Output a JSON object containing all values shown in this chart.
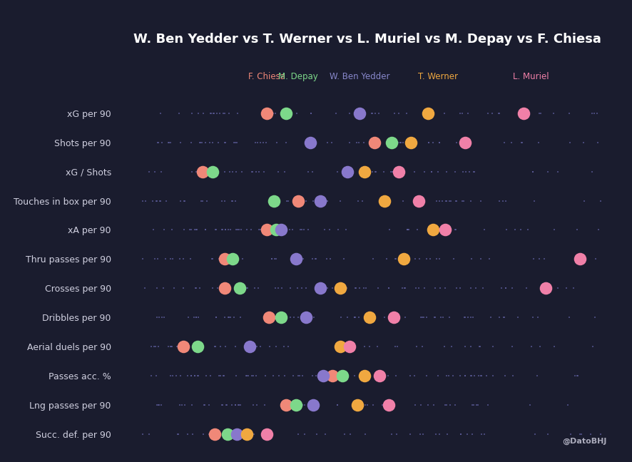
{
  "title": "W. Ben Yedder vs T. Werner vs L. Muriel vs M. Depay vs F. Chiesa",
  "background_color": "#1a1c2e",
  "text_color": "#d0d0e0",
  "watermark": "@DatoBHJ",
  "players": [
    "F. Chiesa",
    "M. Depay",
    "W. Ben Yedder",
    "T. Werner",
    "L. Muriel"
  ],
  "player_colors": [
    "#f08878",
    "#7dd88a",
    "#8878cc",
    "#f0a840",
    "#f080a8"
  ],
  "player_label_colors": [
    "#f08878",
    "#7dd88a",
    "#8888cc",
    "#f0a840",
    "#f080a8"
  ],
  "metrics": [
    "xG per 90",
    "Shots per 90",
    "xG / Shots",
    "Touches in box per 90",
    "xA per 90",
    "Thru passes per 90",
    "Crosses per 90",
    "Dribbles per 90",
    "Aerial duels per 90",
    "Passes acc. %",
    "Lng passes per 90",
    "Succ. def. per 90"
  ],
  "player_positions": {
    "xG per 90": {
      "F. Chiesa": 0.305,
      "M. Depay": 0.345,
      "W. Ben Yedder": 0.495,
      "T. Werner": 0.635,
      "L. Muriel": 0.83
    },
    "Shots per 90": {
      "F. Chiesa": 0.525,
      "M. Depay": 0.56,
      "W. Ben Yedder": 0.395,
      "T. Werner": 0.6,
      "L. Muriel": 0.71
    },
    "xG / Shots": {
      "F. Chiesa": 0.175,
      "M. Depay": 0.195,
      "W. Ben Yedder": 0.47,
      "T. Werner": 0.505,
      "L. Muriel": 0.575
    },
    "Touches in box per 90": {
      "F. Chiesa": 0.37,
      "M. Depay": 0.32,
      "W. Ben Yedder": 0.415,
      "T. Werner": 0.545,
      "L. Muriel": 0.615
    },
    "xA per 90": {
      "F. Chiesa": 0.305,
      "M. Depay": 0.325,
      "W. Ben Yedder": 0.335,
      "T. Werner": 0.645,
      "L. Muriel": 0.67
    },
    "Thru passes per 90": {
      "F. Chiesa": 0.22,
      "M. Depay": 0.235,
      "W. Ben Yedder": 0.365,
      "T. Werner": 0.585,
      "L. Muriel": 0.945
    },
    "Crosses per 90": {
      "F. Chiesa": 0.22,
      "M. Depay": 0.25,
      "W. Ben Yedder": 0.415,
      "T. Werner": 0.455,
      "L. Muriel": 0.875
    },
    "Dribbles per 90": {
      "F. Chiesa": 0.31,
      "M. Depay": 0.335,
      "W. Ben Yedder": 0.385,
      "T. Werner": 0.515,
      "L. Muriel": 0.565
    },
    "Aerial duels per 90": {
      "F. Chiesa": 0.135,
      "M. Depay": 0.165,
      "W. Ben Yedder": 0.27,
      "T. Werner": 0.455,
      "L. Muriel": 0.475
    },
    "Passes acc. %": {
      "F. Chiesa": 0.44,
      "M. Depay": 0.46,
      "W. Ben Yedder": 0.42,
      "T. Werner": 0.505,
      "L. Muriel": 0.535
    },
    "Lng passes per 90": {
      "F. Chiesa": 0.345,
      "M. Depay": 0.365,
      "W. Ben Yedder": 0.4,
      "T. Werner": 0.49,
      "L. Muriel": 0.555
    },
    "Succ. def. per 90": {
      "F. Chiesa": 0.2,
      "M. Depay": 0.225,
      "W. Ben Yedder": 0.245,
      "T. Werner": 0.265,
      "L. Muriel": 0.305
    }
  },
  "label_x": {
    "F. Chiesa": 0.305,
    "M. Depay": 0.37,
    "W. Ben Yedder": 0.495,
    "T. Werner": 0.655,
    "L. Muriel": 0.845
  },
  "figsize": [
    8.87,
    6.48
  ],
  "dpi": 100
}
